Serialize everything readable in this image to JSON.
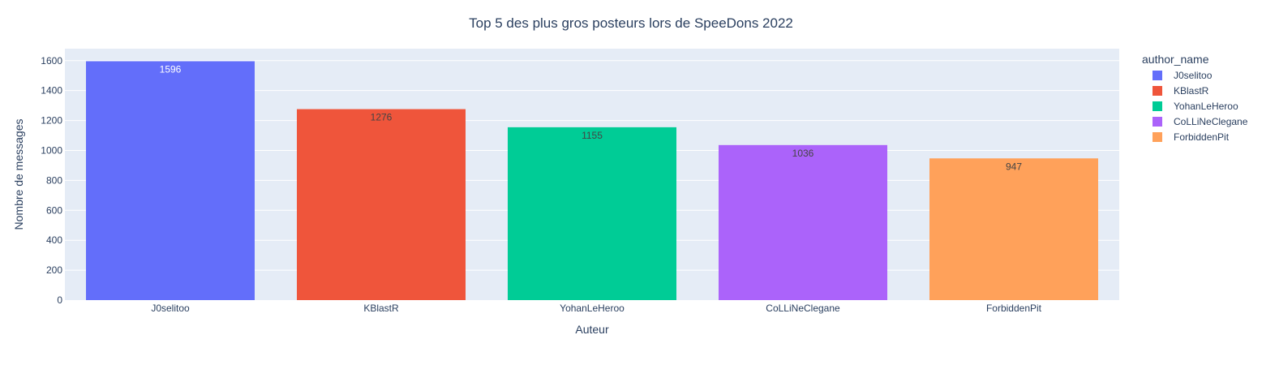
{
  "chart_data": {
    "type": "bar",
    "title": "Top 5 des plus gros posteurs lors de SpeeDons 2022",
    "xlabel": "Auteur",
    "ylabel": "Nombre de messages",
    "categories": [
      "J0selitoo",
      "KBlastR",
      "YohanLeHeroo",
      "CoLLiNeClegane",
      "ForbiddenPit"
    ],
    "values": [
      1596,
      1276,
      1155,
      1036,
      947
    ],
    "colors": [
      "#636efa",
      "#EF553B",
      "#00cc96",
      "#ab63fa",
      "#FFA15A"
    ],
    "label_colors": [
      "#ffffff",
      "#444444",
      "#444444",
      "#444444",
      "#444444"
    ],
    "ylim": [
      0,
      1680
    ],
    "yticks": [
      0,
      200,
      400,
      600,
      800,
      1000,
      1200,
      1400,
      1600
    ],
    "grid": true,
    "plot_background": "#e5ecf6",
    "legend": {
      "title": "author_name",
      "placement": "right",
      "entries": [
        "J0selitoo",
        "KBlastR",
        "YohanLeHeroo",
        "CoLLiNeClegane",
        "ForbiddenPit"
      ]
    }
  }
}
